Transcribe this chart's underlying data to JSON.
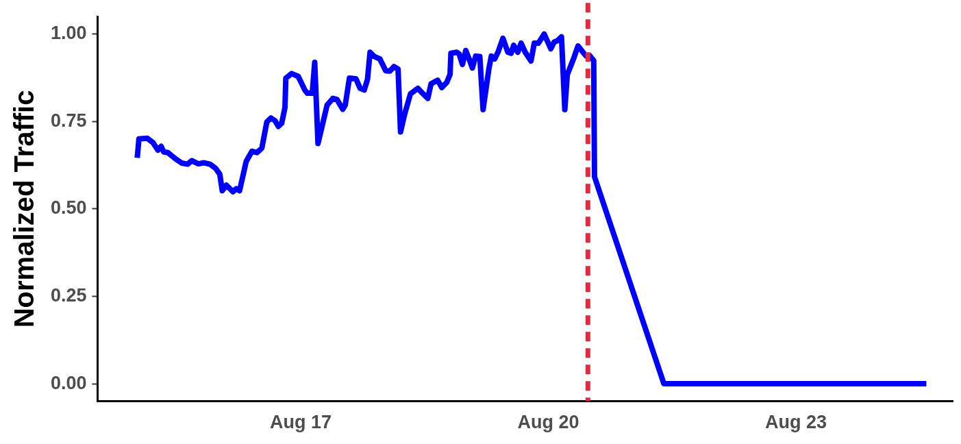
{
  "chart_data": {
    "type": "line",
    "ylabel": "Normalized Traffic",
    "x": [
      "--08-15T00:29",
      "--08-15T00:58",
      "--08-15T03:22",
      "--08-15T05:02",
      "--08-15T06:29",
      "--08-15T07:26",
      "--08-15T08:10",
      "--08-15T09:22",
      "--08-15T11:46",
      "--08-15T13:26",
      "--08-15T15:07",
      "--08-15T16:19",
      "--08-15T18:14",
      "--08-15T19:55",
      "--08-15T21:36",
      "--08-15T23:17",
      "--08-16T00:29",
      "--08-16T01:12",
      "--08-16T02:24",
      "--08-16T04:19",
      "--08-16T05:17",
      "--08-16T06:14",
      "--08-16T08:10",
      "--08-16T09:50",
      "--08-16T11:17",
      "--08-16T12:43",
      "--08-16T14:10",
      "--08-16T15:22",
      "--08-16T16:34",
      "--08-16T17:31",
      "--08-16T18:29",
      "--08-16T19:26",
      "--08-16T19:41",
      "--08-16T21:22",
      "--08-16T23:17",
      "--08-17T01:12",
      "--08-17T01:55",
      "--08-17T03:22",
      "--08-17T04:05",
      "--08-17T05:02",
      "--08-17T07:41",
      "--08-17T09:22",
      "--08-17T10:34",
      "--08-17T12:14",
      "--08-17T12:58",
      "--08-17T14:10",
      "--08-17T16:05",
      "--08-17T17:17",
      "--08-17T18:29",
      "--08-17T19:26",
      "--08-17T20:10",
      "--08-17T21:22",
      "--08-17T23:02",
      "--08-18T00:43",
      "--08-18T01:55",
      "--08-18T03:07",
      "--08-18T04:19",
      "--08-18T05:02",
      "--08-18T06:14",
      "--08-18T07:55",
      "--08-18T10:05",
      "--08-18T11:17",
      "--08-18T12:58",
      "--08-18T13:55",
      "--08-18T15:50",
      "--08-18T17:02",
      "--08-18T18:29",
      "--08-18T19:26",
      "--08-18T19:41",
      "--08-18T21:22",
      "--08-18T22:05",
      "--08-18T23:02",
      "--08-19T00:00",
      "--08-19T00:58",
      "--08-19T01:55",
      "--08-19T02:53",
      "--08-19T04:05",
      "--08-19T05:02",
      "--08-19T06:43",
      "--08-19T07:26",
      "--08-19T08:24",
      "--08-19T09:22",
      "--08-19T10:48",
      "--08-19T12:14",
      "--08-19T13:12",
      "--08-19T13:55",
      "--08-19T15:07",
      "--08-19T16:05",
      "--08-19T17:17",
      "--08-19T18:58",
      "--08-19T19:55",
      "--08-19T21:07",
      "--08-19T22:48",
      "--08-20T00:43",
      "--08-20T01:41",
      "--08-20T02:38",
      "--08-20T03:50",
      "--08-20T04:48",
      "--08-20T05:31",
      "--08-20T07:26",
      "--08-20T08:38",
      "--08-20T10:05",
      "--08-20T11:02",
      "--08-20T12:00",
      "--08-20T13:12",
      "--08-20T13:26",
      "--08-21T09:36",
      "--08-24T13:55"
    ],
    "series": [
      {
        "color": "#0000ff",
        "line_style": "solid",
        "values": [
          0.646,
          0.7,
          0.702,
          0.69,
          0.668,
          0.679,
          0.663,
          0.661,
          0.642,
          0.631,
          0.628,
          0.638,
          0.629,
          0.632,
          0.628,
          0.616,
          0.599,
          0.552,
          0.568,
          0.549,
          0.558,
          0.552,
          0.636,
          0.665,
          0.661,
          0.674,
          0.749,
          0.76,
          0.752,
          0.736,
          0.745,
          0.79,
          0.874,
          0.887,
          0.879,
          0.84,
          0.831,
          0.831,
          0.919,
          0.687,
          0.797,
          0.816,
          0.813,
          0.785,
          0.797,
          0.874,
          0.872,
          0.845,
          0.84,
          0.871,
          0.948,
          0.936,
          0.929,
          0.895,
          0.894,
          0.907,
          0.9,
          0.72,
          0.771,
          0.829,
          0.845,
          0.832,
          0.816,
          0.858,
          0.868,
          0.847,
          0.862,
          0.885,
          0.945,
          0.948,
          0.943,
          0.913,
          0.953,
          0.929,
          0.903,
          0.937,
          0.936,
          0.784,
          0.9,
          0.937,
          0.929,
          0.948,
          0.988,
          0.948,
          0.945,
          0.968,
          0.948,
          0.974,
          0.948,
          0.923,
          0.974,
          0.974,
          1.0,
          0.958,
          0.977,
          0.981,
          0.992,
          0.784,
          0.884,
          0.932,
          0.966,
          0.948,
          0.937,
          0.939,
          0.924,
          0.592,
          0,
          0
        ]
      }
    ],
    "xlim": [
      "--08-14T12:58",
      "--08-24T21:36"
    ],
    "xticks": [
      {
        "value": "--08-17",
        "label": "Aug 17"
      },
      {
        "value": "--08-20",
        "label": "Aug 20"
      },
      {
        "value": "--08-23",
        "label": "Aug 23"
      }
    ],
    "ylim": [
      -0.05,
      1.05
    ],
    "yticks": [
      {
        "value": 0,
        "label": "0.00"
      },
      {
        "value": 0.25,
        "label": "0.25"
      },
      {
        "value": 0.5,
        "label": "0.50"
      },
      {
        "value": 0.75,
        "label": "0.75"
      },
      {
        "value": 1,
        "label": "1.00"
      }
    ],
    "ref_lines": [
      {
        "axis": "x",
        "value": "--08-20T11:31",
        "color": "#e8283c",
        "line_style": "dashed"
      }
    ],
    "marker": "none",
    "grid": false,
    "legend": false
  }
}
